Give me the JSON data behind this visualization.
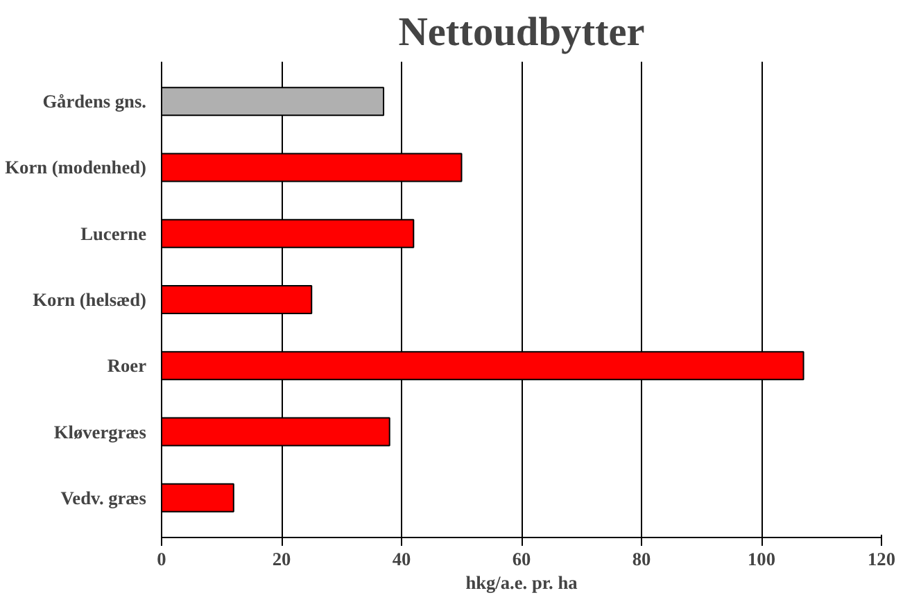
{
  "chart_data": {
    "type": "bar",
    "orientation": "horizontal",
    "title": "Nettoudbytter",
    "xlabel": "hkg/a.e. pr. ha",
    "categories": [
      "Gårdens gns.",
      "Korn (modenhed)",
      "Lucerne",
      "Korn (helsæd)",
      "Roer",
      "Kløvergræs",
      "Vedv. græs"
    ],
    "values": [
      37,
      50,
      42,
      25,
      107,
      38,
      12
    ],
    "colors": [
      "#b0b0b0",
      "#ff0000",
      "#ff0000",
      "#ff0000",
      "#ff0000",
      "#ff0000",
      "#ff0000"
    ],
    "xlim": [
      0,
      120
    ],
    "xticks": [
      0,
      20,
      40,
      60,
      80,
      100,
      120
    ],
    "grid": "x"
  }
}
